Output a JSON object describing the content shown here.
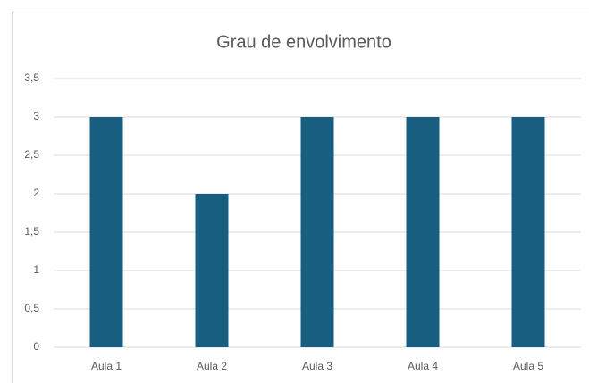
{
  "chart_data": {
    "type": "bar",
    "title": "Grau de envolvimento",
    "categories": [
      "Aula 1",
      "Aula 2",
      "Aula 3",
      "Aula 4",
      "Aula 5"
    ],
    "values": [
      3,
      2,
      3,
      3,
      3
    ],
    "color": "#175e80",
    "ylim": [
      0,
      3.5
    ],
    "yticks": [
      0,
      {
        "value": 0.5,
        "label": "0,5"
      },
      1,
      {
        "value": 1.5,
        "label": "1,5"
      },
      2,
      {
        "value": 2.5,
        "label": "2,5"
      },
      3,
      {
        "value": 3.5,
        "label": "3,5"
      }
    ],
    "grid": true
  }
}
